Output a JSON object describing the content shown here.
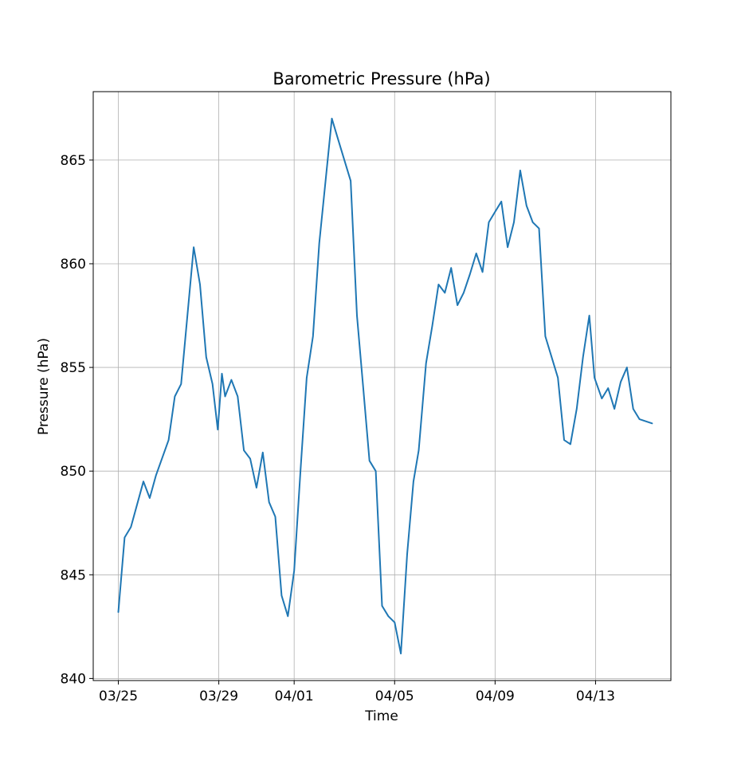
{
  "chart_data": {
    "type": "line",
    "title": "Barometric Pressure (hPa)",
    "xlabel": "Time",
    "ylabel": "Pressure (hPa)",
    "x_ticks": [
      "03/25",
      "03/29",
      "04/01",
      "04/05",
      "04/09",
      "04/13"
    ],
    "y_ticks": [
      "840",
      "845",
      "850",
      "855",
      "860",
      "865"
    ],
    "xlim": [
      "2025-03-24T00:00",
      "2025-04-16T00:00"
    ],
    "ylim": [
      839.9,
      868.3
    ],
    "grid": true,
    "legend": "none",
    "series": [
      {
        "color": "#1f77b4",
        "x": [
          "2025-03-25T00:00",
          "2025-03-25T06:00",
          "2025-03-25T12:00",
          "2025-03-26T00:00",
          "2025-03-26T06:00",
          "2025-03-26T12:00",
          "2025-03-27T00:00",
          "2025-03-27T06:00",
          "2025-03-27T12:00",
          "2025-03-27T18:00",
          "2025-03-28T00:00",
          "2025-03-28T06:00",
          "2025-03-28T12:00",
          "2025-03-28T18:00",
          "2025-03-28T23:00",
          "2025-03-29T03:00",
          "2025-03-29T06:00",
          "2025-03-29T12:00",
          "2025-03-29T18:00",
          "2025-03-30T00:00",
          "2025-03-30T06:00",
          "2025-03-30T12:00",
          "2025-03-30T18:00",
          "2025-03-31T00:00",
          "2025-03-31T06:00",
          "2025-03-31T12:00",
          "2025-03-31T18:00",
          "2025-04-01T00:00",
          "2025-04-01T06:00",
          "2025-04-01T12:00",
          "2025-04-01T18:00",
          "2025-04-02T00:00",
          "2025-04-02T06:00",
          "2025-04-02T12:00",
          "2025-04-02T18:00",
          "2025-04-03T00:00",
          "2025-04-03T06:00",
          "2025-04-03T12:00",
          "2025-04-03T18:00",
          "2025-04-04T00:00",
          "2025-04-04T06:00",
          "2025-04-04T12:00",
          "2025-04-04T18:00",
          "2025-04-05T00:00",
          "2025-04-05T06:00",
          "2025-04-05T12:00",
          "2025-04-05T18:00",
          "2025-04-05T23:00",
          "2025-04-06T06:00",
          "2025-04-06T12:00",
          "2025-04-06T18:00",
          "2025-04-07T00:00",
          "2025-04-07T06:00",
          "2025-04-07T12:00",
          "2025-04-07T18:00",
          "2025-04-08T00:00",
          "2025-04-08T06:00",
          "2025-04-08T12:00",
          "2025-04-08T18:00",
          "2025-04-09T00:00",
          "2025-04-09T06:00",
          "2025-04-09T12:00",
          "2025-04-09T18:00",
          "2025-04-10T00:00",
          "2025-04-10T06:00",
          "2025-04-10T12:00",
          "2025-04-10T18:00",
          "2025-04-11T00:00",
          "2025-04-11T06:00",
          "2025-04-11T12:00",
          "2025-04-11T18:00",
          "2025-04-12T00:00",
          "2025-04-12T06:00",
          "2025-04-12T12:00",
          "2025-04-12T18:00",
          "2025-04-12T23:00",
          "2025-04-13T06:00",
          "2025-04-13T12:00",
          "2025-04-13T18:00",
          "2025-04-14T00:00",
          "2025-04-14T06:00",
          "2025-04-14T12:00",
          "2025-04-14T18:00",
          "2025-04-15T00:00",
          "2025-04-15T06:00"
        ],
        "y": [
          843.2,
          846.8,
          847.3,
          849.5,
          848.7,
          849.8,
          851.5,
          853.6,
          854.2,
          857.5,
          860.8,
          859.0,
          855.5,
          854.2,
          852.0,
          854.7,
          853.6,
          854.4,
          853.6,
          851.0,
          850.6,
          849.2,
          850.9,
          848.5,
          847.8,
          844.0,
          843.0,
          845.2,
          850.0,
          854.5,
          856.5,
          861.0,
          864.0,
          867.0,
          866.0,
          865.0,
          864.0,
          857.5,
          854.0,
          850.5,
          850.0,
          843.5,
          843.0,
          842.7,
          841.2,
          846.0,
          849.5,
          851.0,
          855.2,
          857.0,
          859.0,
          858.6,
          859.8,
          858.0,
          858.6,
          859.5,
          860.5,
          859.6,
          862.0,
          862.5,
          863.0,
          860.8,
          862.0,
          864.5,
          862.8,
          862.0,
          861.7,
          856.5,
          855.5,
          854.5,
          851.5,
          851.3,
          853.0,
          855.5,
          857.5,
          854.5,
          853.5,
          854.0,
          853.0,
          854.3,
          855.0,
          853.0,
          852.5,
          852.4,
          852.3
        ]
      }
    ]
  }
}
